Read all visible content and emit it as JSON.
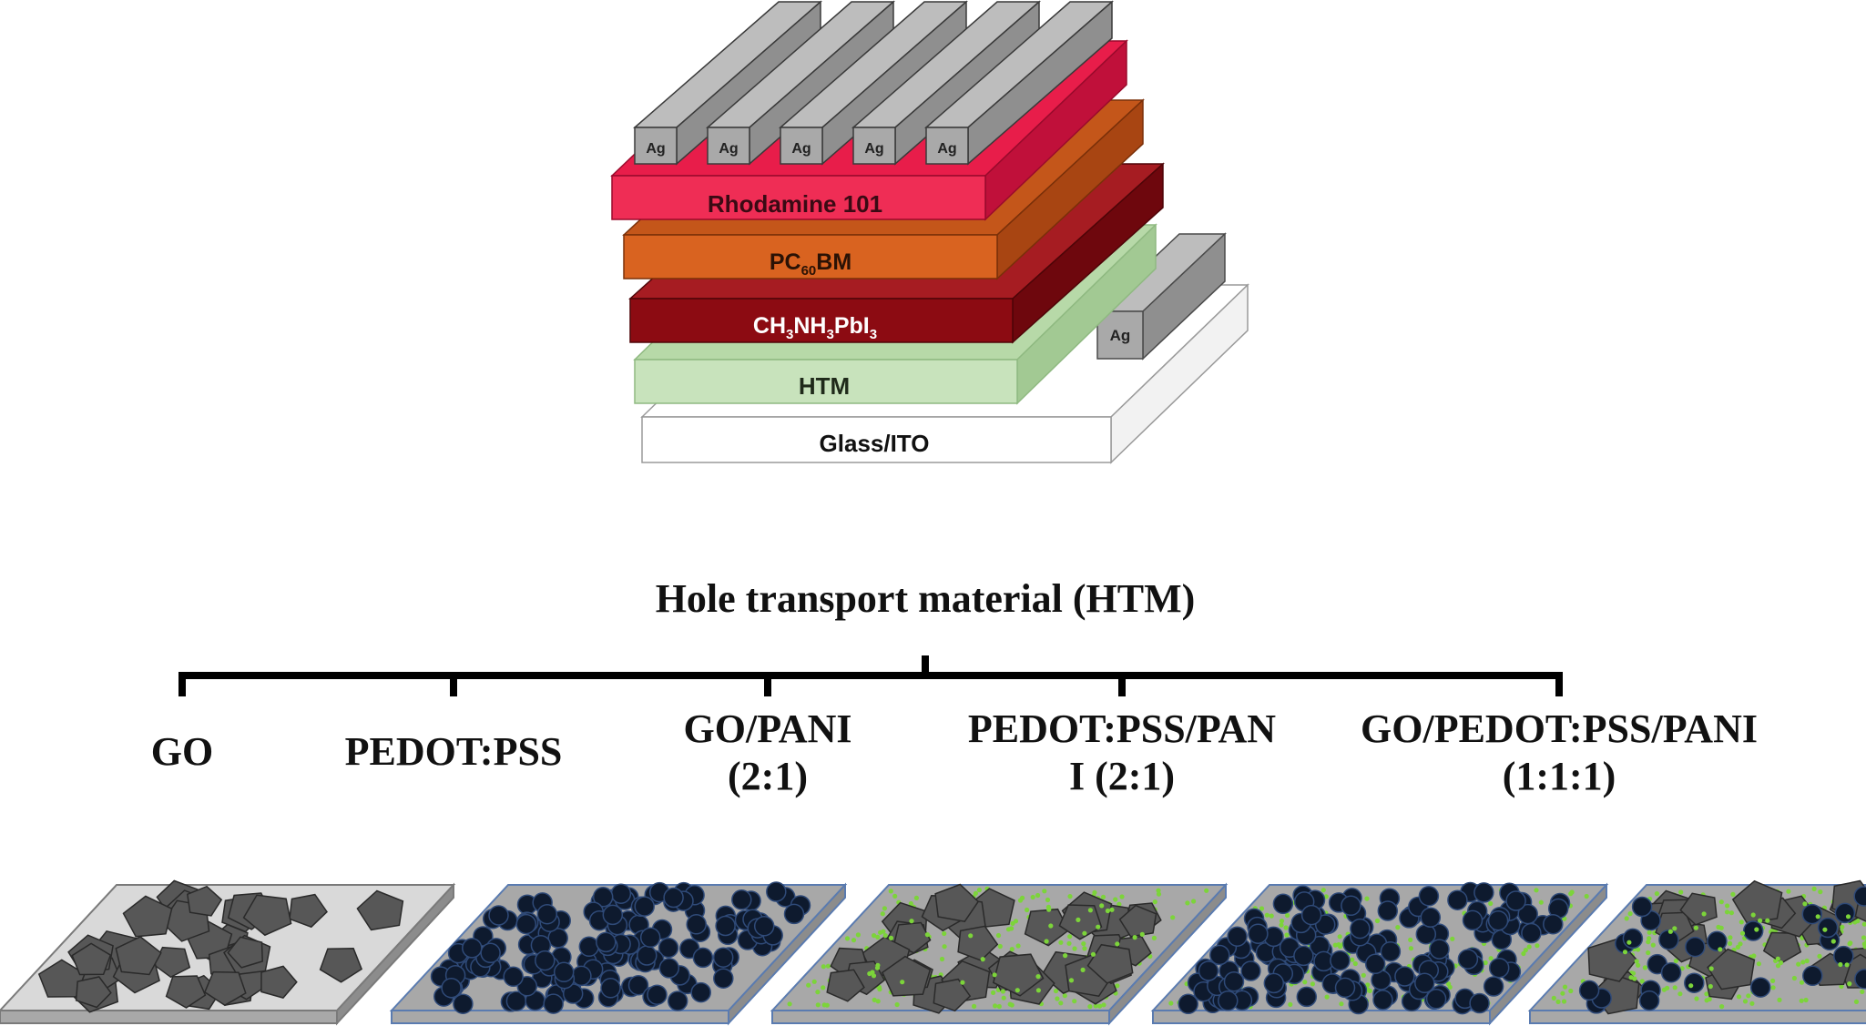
{
  "stack": {
    "contacts": [
      "Ag",
      "Ag",
      "Ag",
      "Ag",
      "Ag"
    ],
    "side_contact": "Ag",
    "layers": [
      {
        "id": "rhodamine",
        "label": "Rhodamine 101",
        "front": "#ef2d55",
        "top": "#e81d4a",
        "side": "#c0103a",
        "text": "#3a0a14"
      },
      {
        "id": "pcbm",
        "label_main": "PC",
        "label_sub": "60",
        "label_tail": "BM",
        "front": "#d96320",
        "top": "#c4561a",
        "side": "#a84512",
        "text": "#2a1205"
      },
      {
        "id": "perovskite",
        "label_parts": [
          "CH",
          "3",
          "NH",
          "3",
          "PbI",
          "3"
        ],
        "front": "#8c0b12",
        "top": "#a61c22",
        "side": "#6e070d",
        "text": "#ffffff"
      },
      {
        "id": "htm",
        "label": "HTM",
        "front": "#c8e3bc",
        "top": "#b7d9a8",
        "side": "#a2c993",
        "text": "#1f2a1a"
      },
      {
        "id": "glass",
        "label": "Glass/ITO",
        "front": "#ffffff",
        "top": "#ffffff",
        "side": "#f2f2f2",
        "text": "#111111"
      }
    ]
  },
  "tree": {
    "title": "Hole transport material (HTM)",
    "branches": [
      {
        "line1": "GO",
        "line2": ""
      },
      {
        "line1": "PEDOT:PSS",
        "line2": ""
      },
      {
        "line1": "GO/PANI",
        "line2": "(2:1)"
      },
      {
        "line1": "PEDOT:PSS/PAN",
        "line2": "I (2:1)"
      },
      {
        "line1": "GO/PEDOT:PSS/PANI",
        "line2": "(1:1:1)"
      }
    ]
  },
  "films": [
    {
      "id": "go",
      "base": "#d9d9d9",
      "flakes": true,
      "dots": false,
      "green": false
    },
    {
      "id": "pedot",
      "base": "#a8a8a8",
      "flakes": false,
      "dots": true,
      "green": false
    },
    {
      "id": "go-pani",
      "base": "#a8a8a8",
      "flakes": true,
      "dots": false,
      "green": true
    },
    {
      "id": "pedot-pani",
      "base": "#a8a8a8",
      "flakes": false,
      "dots": true,
      "green": true
    },
    {
      "id": "go-pedot-pani",
      "base": "#a8a8a8",
      "flakes": true,
      "dots": true,
      "green": true
    }
  ],
  "colors": {
    "contact_front": "#a9a9a9",
    "contact_top": "#bdbdbd",
    "contact_side": "#8f8f8f",
    "flake": "#575757",
    "dot": "#0e1a2e",
    "green": "#7cd43a",
    "tree": "#000000"
  }
}
